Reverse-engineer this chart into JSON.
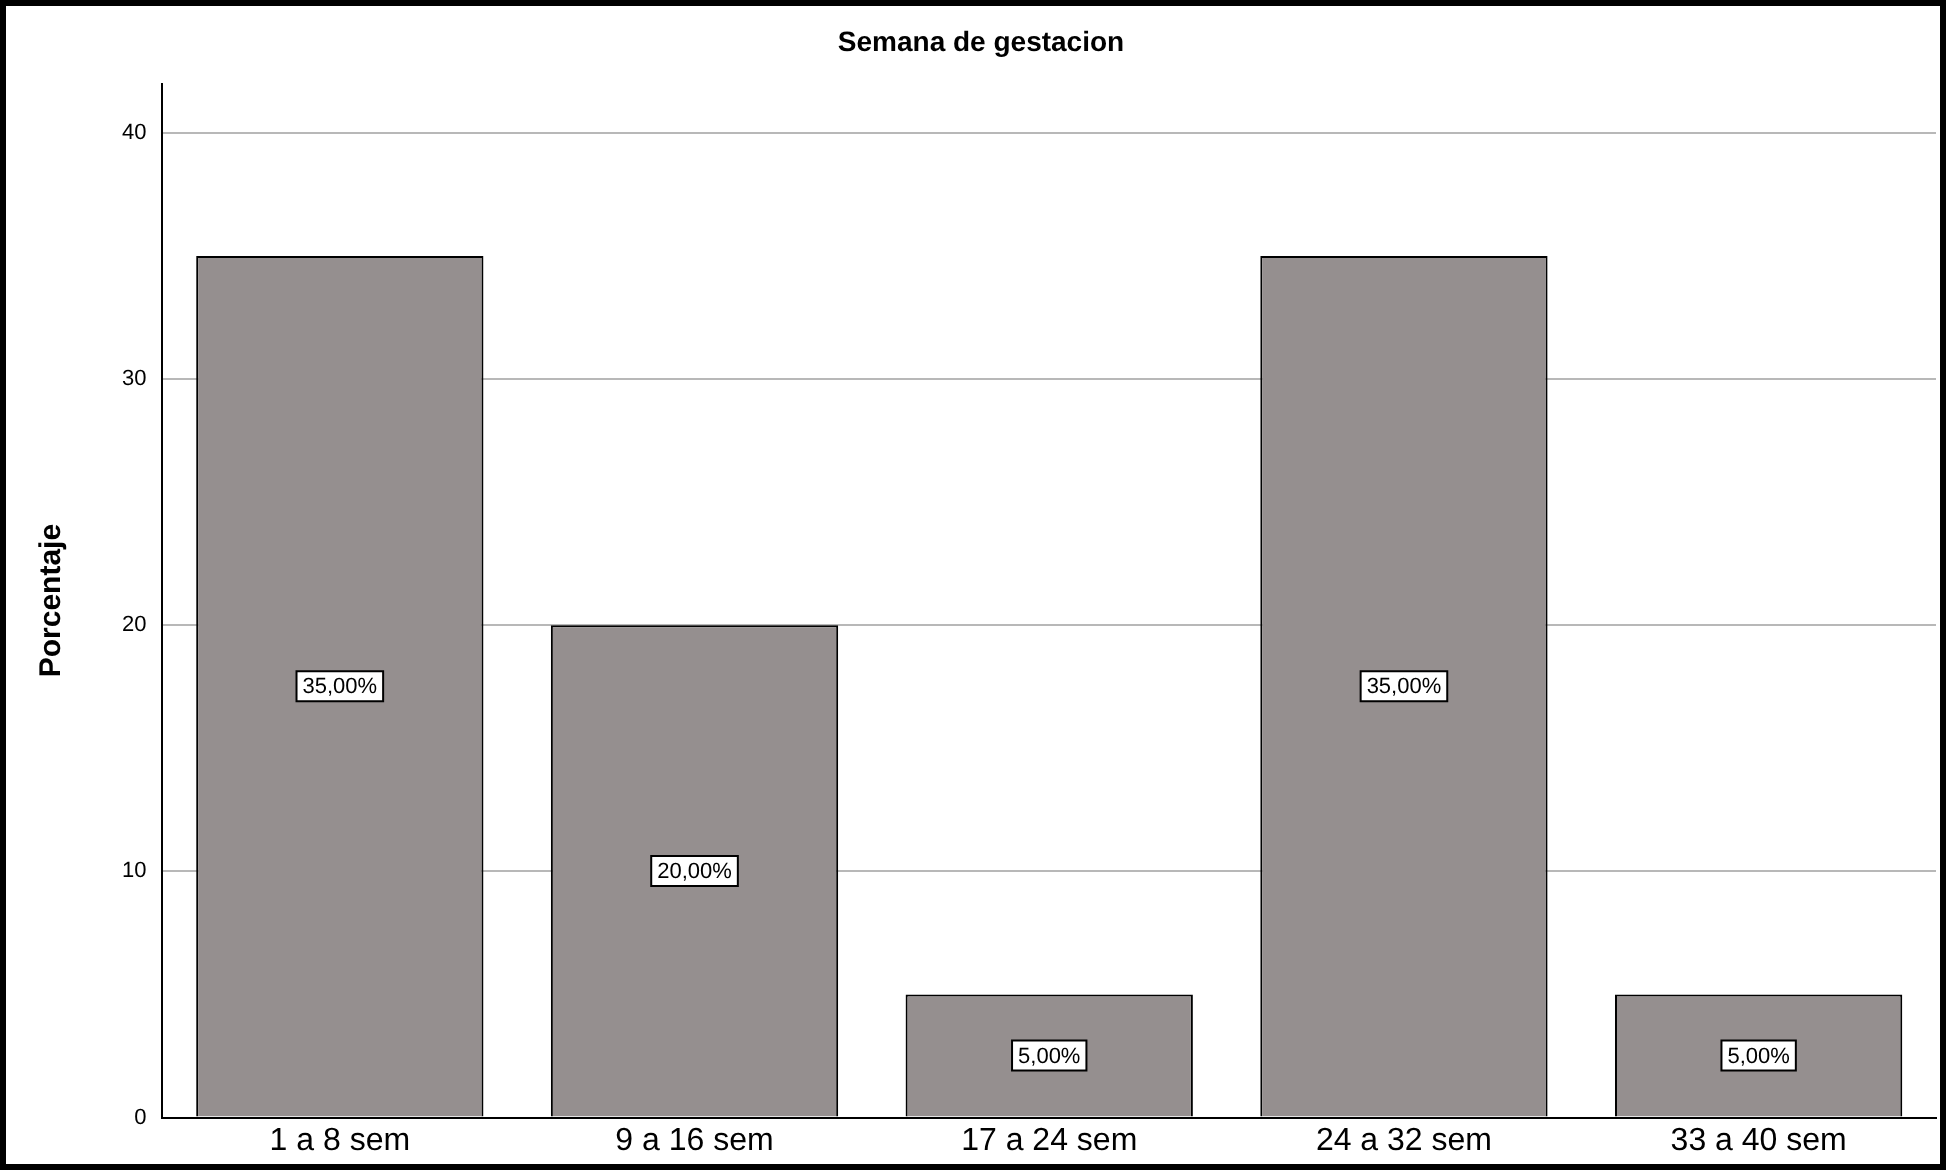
{
  "chart_data": {
    "type": "bar",
    "title": "Semana de gestacion",
    "ylabel": "Porcentaje",
    "categories": [
      "1 a 8 sem",
      "9 a 16 sem",
      "17 a 24 sem",
      "24 a 32 sem",
      "33 a 40 sem"
    ],
    "values": [
      35,
      20,
      5,
      35,
      5
    ],
    "value_labels": [
      "35,00%",
      "20,00%",
      "5,00%",
      "35,00%",
      "5,00%"
    ],
    "color": "#958f8f",
    "ylim": [
      0,
      42
    ],
    "yticks": [
      0,
      10,
      20,
      30,
      40
    ],
    "grid": "y",
    "legend": false
  }
}
